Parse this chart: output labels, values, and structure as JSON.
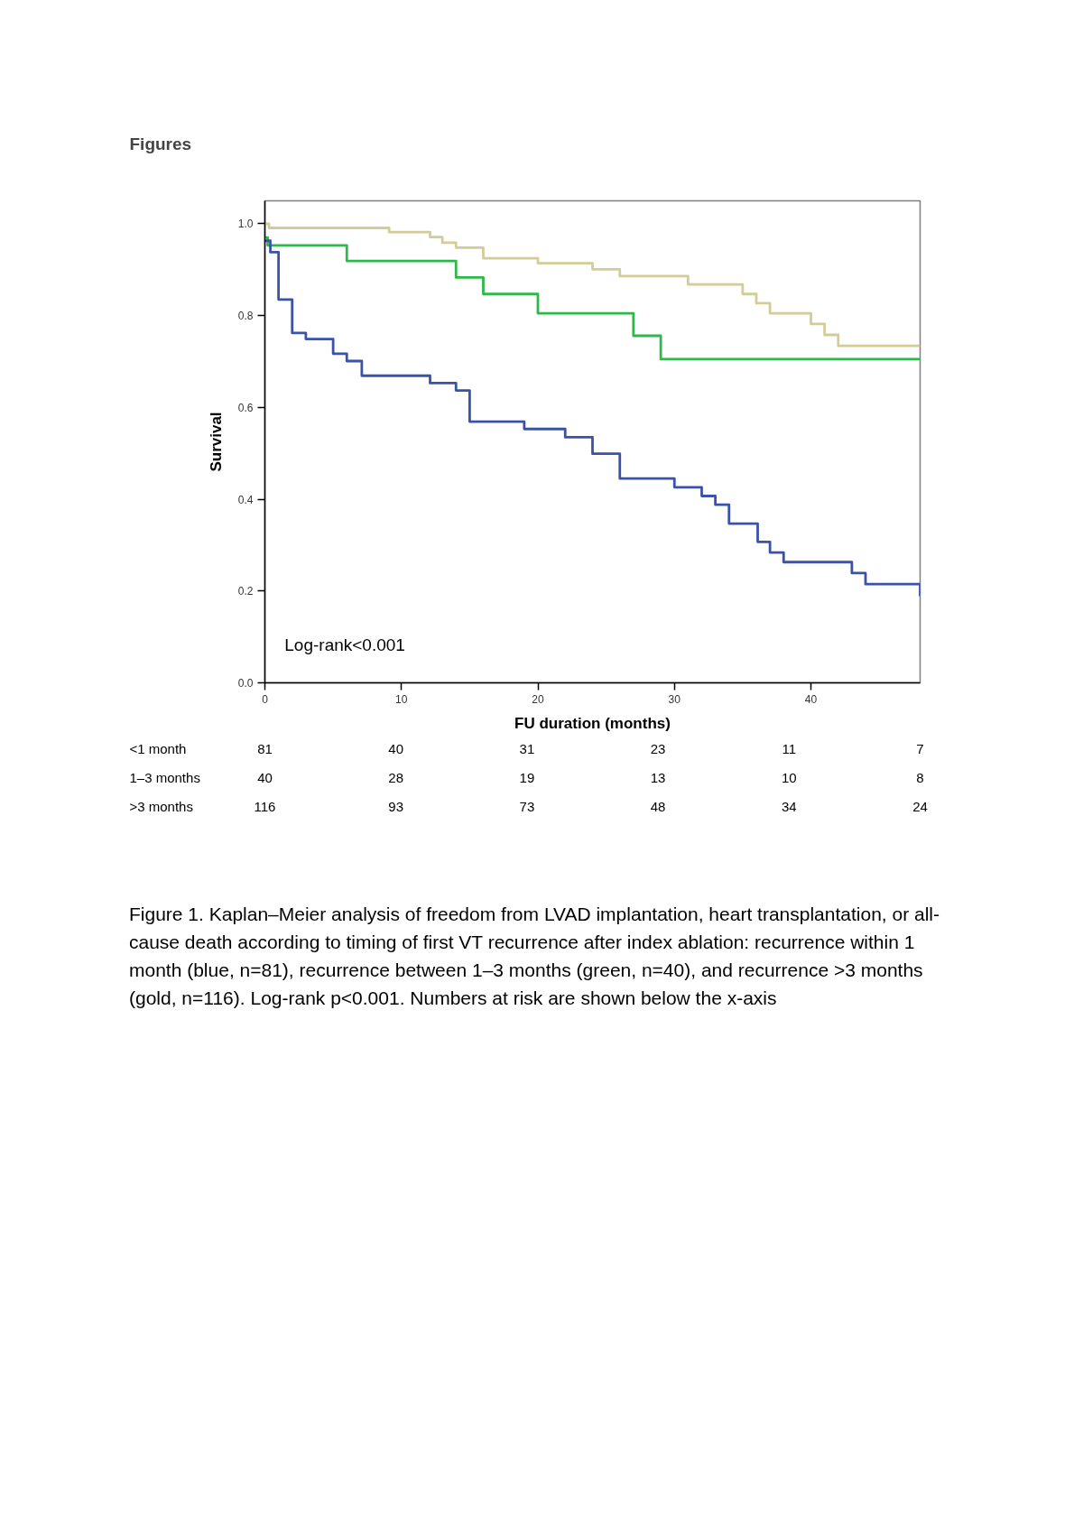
{
  "chart_data": [
    {
      "type": "step",
      "title": "Figures",
      "xlabel": "FU duration (months)",
      "ylabel": "Survival",
      "xlim": [
        0,
        48
      ],
      "ylim": [
        0,
        1.05
      ],
      "xticks": [
        0,
        10,
        20,
        30,
        40
      ],
      "yticks": [
        {
          "value": 0,
          "label": "0.0"
        },
        0.2,
        0.4,
        0.6,
        0.8,
        {
          "value": 1,
          "label": "1.0"
        }
      ],
      "grid": false,
      "series": [
        {
          "color": "#d4cc98",
          "x": [
            0,
            0.3,
            9.1,
            12.1,
            13.0,
            14.0,
            16.0,
            20.0,
            24.0,
            26.0,
            31.0,
            35.0,
            36.0,
            37.0,
            40.0,
            41.0,
            42.0,
            48
          ],
          "values": [
            1.0,
            0.991,
            0.982,
            0.971,
            0.959,
            0.948,
            0.925,
            0.914,
            0.901,
            0.886,
            0.868,
            0.847,
            0.827,
            0.805,
            0.782,
            0.758,
            0.734,
            0.734
          ]
        },
        {
          "color": "#2eb84a",
          "x": [
            0,
            0.2,
            6.0,
            14.0,
            16.0,
            20.0,
            27.0,
            29.0,
            48
          ],
          "values": [
            0.97,
            0.953,
            0.919,
            0.883,
            0.847,
            0.805,
            0.756,
            0.705,
            0.705
          ]
        },
        {
          "color": "#3a52a8",
          "x": [
            0,
            0.4,
            1.0,
            2.0,
            3.0,
            5.0,
            6.0,
            7.1,
            12.1,
            14.0,
            15.0,
            19.0,
            22.0,
            24.0,
            26.0,
            30.0,
            32.0,
            33.0,
            34.0,
            36.1,
            37.0,
            38.0,
            43.0,
            44.0,
            48
          ],
          "values": [
            0.963,
            0.938,
            0.835,
            0.762,
            0.749,
            0.717,
            0.701,
            0.669,
            0.653,
            0.637,
            0.569,
            0.553,
            0.535,
            0.499,
            0.445,
            0.426,
            0.407,
            0.388,
            0.347,
            0.307,
            0.284,
            0.263,
            0.239,
            0.215,
            0.189
          ]
        }
      ],
      "annotations": [
        "Log-rank<0.001",
        "Figure 1. Kaplan–Meier analysis of freedom from LVAD implantation, heart transplantation, or all-cause death according to timing of first VT recurrence after index ablation: recurrence within 1 month (blue, n=81), recurrence between 1–3 months (green, n=40), and recurrence >3 months (gold, n=116). Log-rank p<0.001. Numbers at risk are shown below the x-axis"
      ]
    },
    {
      "type": "other",
      "y_categories": [
        "<1 month",
        "1–3 months",
        ">3 months"
      ],
      "annotations": [
        "81",
        "40",
        "31",
        "23",
        "11",
        "7",
        "40",
        "28",
        "19",
        "13",
        "10",
        "8",
        "116",
        "93",
        "73",
        "48",
        "34",
        "24"
      ]
    }
  ]
}
